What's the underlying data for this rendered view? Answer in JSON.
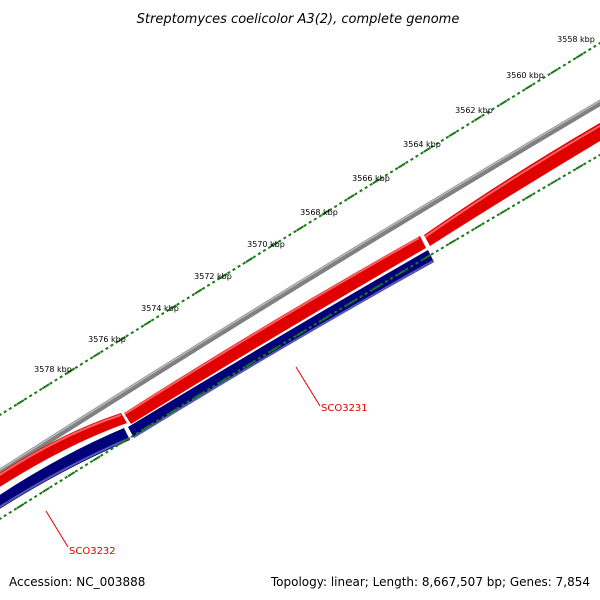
{
  "title": "Streptomyces coelicolor A3(2), complete genome",
  "ruler": {
    "color": "#1a7a1a",
    "ticks": [
      {
        "label": "3558 kbp"
      },
      {
        "label": "3560 kbp"
      },
      {
        "label": "3562 kbp"
      },
      {
        "label": "3564 kbp"
      },
      {
        "label": "3566 kbp"
      },
      {
        "label": "3568 kbp"
      },
      {
        "label": "3570 kbp"
      },
      {
        "label": "3572 kbp"
      },
      {
        "label": "3574 kbp"
      },
      {
        "label": "3576 kbp"
      },
      {
        "label": "3578 kbp"
      }
    ]
  },
  "tracks": {
    "backbone_color": "#808080",
    "forward_color": "#e00000",
    "reverse_color": "#00007a"
  },
  "genes": [
    {
      "name": "SCO3231",
      "color": "#e00000"
    },
    {
      "name": "SCO3232",
      "color": "#e00000"
    }
  ],
  "footer": {
    "accession": "Accession: NC_003888",
    "summary": "Topology: linear; Length: 8,667,507 bp; Genes: 7,854"
  }
}
